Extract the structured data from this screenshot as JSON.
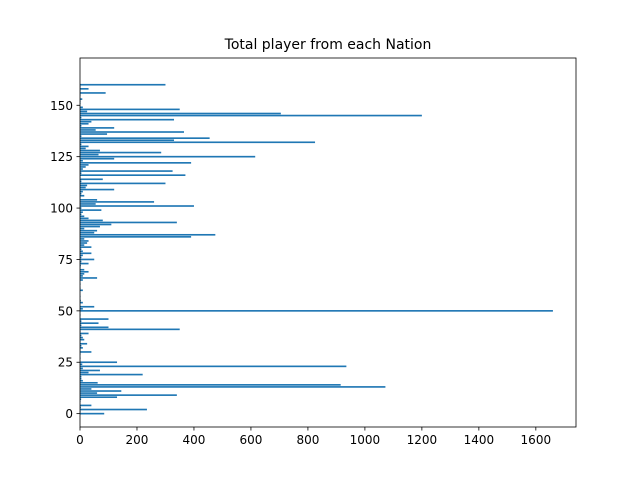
{
  "chart_data": {
    "type": "bar",
    "orientation": "horizontal",
    "title": "Total player from each Nation",
    "xlabel": "",
    "ylabel": "",
    "xlim": [
      0,
      1741
    ],
    "ylim": [
      -6.5,
      173
    ],
    "xticks": [
      0,
      200,
      400,
      600,
      800,
      1000,
      1200,
      1400,
      1600
    ],
    "yticks": [
      0,
      25,
      50,
      75,
      100,
      125,
      150
    ],
    "grid": false,
    "bar_color": "#1f77b4",
    "series": [
      {
        "values": [
          85,
          2,
          235,
          3,
          40,
          1,
          2,
          4,
          130,
          340,
          60,
          145,
          40,
          1072,
          915,
          62,
          10,
          5,
          5,
          220,
          30,
          70,
          10,
          935,
          8,
          130,
          1,
          2,
          1,
          2,
          40,
          2,
          10,
          5,
          25,
          2,
          15,
          10,
          5,
          30,
          2,
          350,
          100,
          5,
          65,
          5,
          100,
          1,
          2,
          1,
          1660,
          10,
          50,
          1,
          10,
          3,
          1,
          2,
          1,
          1,
          10,
          2,
          1,
          2,
          1,
          10,
          60,
          10,
          15,
          30,
          15,
          2,
          3,
          30,
          5,
          50,
          5,
          10,
          40,
          10,
          5,
          40,
          15,
          25,
          30,
          15,
          390,
          475,
          50,
          60,
          15,
          70,
          110,
          340,
          80,
          30,
          15,
          5,
          10,
          75,
          5,
          400,
          55,
          260,
          60,
          2,
          15,
          5,
          10,
          120,
          20,
          25,
          300,
          5,
          80,
          2,
          370,
          5,
          325,
          10,
          20,
          30,
          390,
          10,
          120,
          615,
          65,
          285,
          70,
          20,
          30,
          5,
          825,
          330,
          455,
          5,
          95,
          365,
          55,
          120,
          5,
          30,
          40,
          330,
          5,
          1200,
          705,
          25,
          350,
          10,
          1,
          2,
          2,
          8,
          1,
          2,
          90,
          2,
          30,
          2,
          300
        ]
      }
    ]
  }
}
